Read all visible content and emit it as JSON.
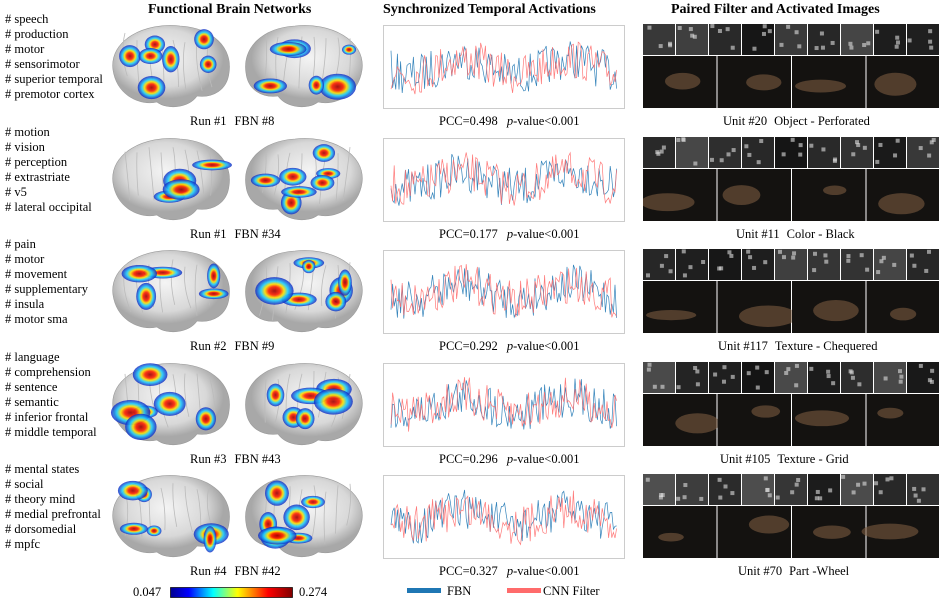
{
  "headers": {
    "brain": "Functional Brain Networks",
    "temporal": "Synchronized Temporal Activations",
    "filter": "Paired Filter and Activated Images"
  },
  "rows": [
    {
      "keywords": [
        "# speech",
        "# production",
        "# motor",
        "# sensorimotor",
        "# superior temporal",
        "# premotor cortex"
      ],
      "run": "Run #1",
      "fbn": "FBN #8",
      "pcc": "PCC=0.498",
      "p": "p",
      "pvalue": "-value<0.001",
      "unit": "Unit #20",
      "category": "Object - Perforated"
    },
    {
      "keywords": [
        "# motion",
        "# vision",
        "# perception",
        "# extrastriate",
        "# v5",
        "# lateral occipital"
      ],
      "run": "Run #1",
      "fbn": "FBN #34",
      "pcc": "PCC=0.177",
      "p": "p",
      "pvalue": "-value<0.001",
      "unit": "Unit #11",
      "category": "Color - Black"
    },
    {
      "keywords": [
        "# pain",
        "# motor",
        "# movement",
        "# supplementary",
        "# insula",
        "# motor sma"
      ],
      "run": "Run #2",
      "fbn": "FBN #9",
      "pcc": "PCC=0.292",
      "p": "p",
      "pvalue": "-value<0.001",
      "unit": "Unit #117",
      "category": "Texture - Chequered"
    },
    {
      "keywords": [
        "# language",
        "# comprehension",
        "# sentence",
        "# semantic",
        "# inferior frontal",
        "# middle temporal"
      ],
      "run": "Run #3",
      "fbn": "FBN #43",
      "pcc": "PCC=0.296",
      "p": "p",
      "pvalue": "-value<0.001",
      "unit": "Unit #105",
      "category": "Texture - Grid"
    },
    {
      "keywords": [
        "# mental states",
        "# social",
        "# theory mind",
        "# medial prefrontal",
        "# dorsomedial",
        "# mpfc"
      ],
      "run": "Run #4",
      "fbn": "FBN #42",
      "pcc": "PCC=0.327",
      "p": "p",
      "pvalue": "-value<0.001",
      "unit": "Unit #70",
      "category": "Part -Wheel"
    }
  ],
  "colorbar": {
    "min": "0.047",
    "max": "0.274"
  },
  "legend": {
    "fbn": "FBN",
    "cnn": "CNN Filter"
  }
}
